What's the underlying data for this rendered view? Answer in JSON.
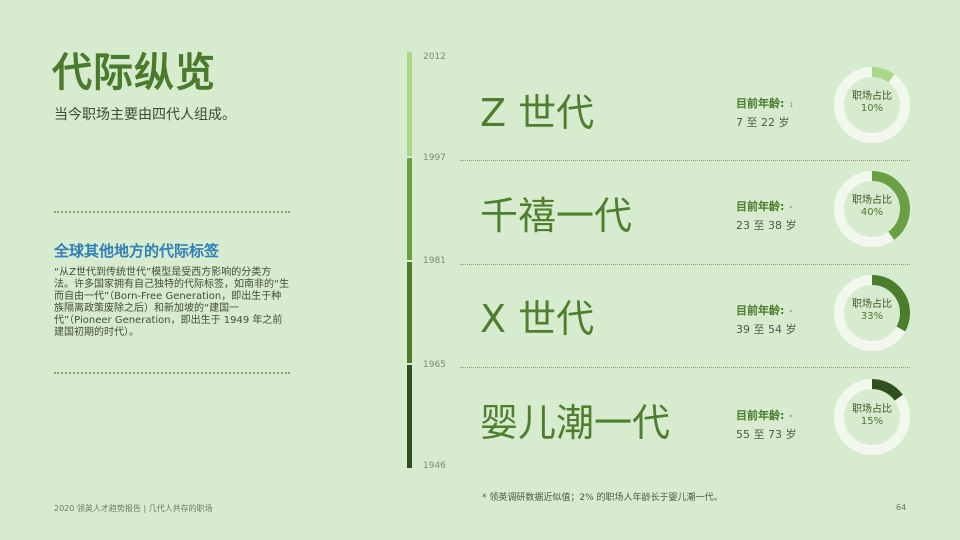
{
  "title": "代际纵览",
  "subtitle": "当今职场主要由四代人组成。",
  "sidebar": {
    "heading": "全球其他地方的代际标签",
    "body": "“从Z世代到传统世代”模型是受西方影响的分类方法。许多国家拥有自己独特的代际标签，如南非的“生而自由一代”（Born-Free Generation，即出生于种族隔离政策废除之后）和新加坡的“建国一代”（Pioneer Generation，即出生于 1949 年之前建国初期的时代）。"
  },
  "years": [
    "2012",
    "1997",
    "1981",
    "1965",
    "1946"
  ],
  "generations": [
    {
      "name": "Z 世代",
      "age_label": "目前年龄:",
      "age_range": "7 至 22 岁",
      "ring_label": "职场占比",
      "pct_text": "10%",
      "share": 0.1,
      "color": "#a9d88a",
      "marker": "1"
    },
    {
      "name": "千禧一代",
      "age_label": "目前年龄:",
      "age_range": "23 至 38 岁",
      "ring_label": "职场占比",
      "pct_text": "40%",
      "share": 0.4,
      "color": "#6aa044",
      "marker": "*"
    },
    {
      "name": "X 世代",
      "age_label": "目前年龄:",
      "age_range": "39 至 54 岁",
      "ring_label": "职场占比",
      "pct_text": "33%",
      "share": 0.33,
      "color": "#4b7d2c",
      "marker": "*"
    },
    {
      "name": "婴儿潮一代",
      "age_label": "目前年龄:",
      "age_range": "55 至 73 岁",
      "ring_label": "职场占比",
      "pct_text": "15%",
      "share": 0.15,
      "color": "#2f4f1e",
      "marker": "*"
    }
  ],
  "footnote": "* 领英调研数据近似值；2% 的职场人年龄长于婴儿潮一代。",
  "footer": {
    "report": "2020 领英人才趋势报告 | 几代人共存的职场",
    "page": "64"
  },
  "colors": {
    "background": "#d7ebcf",
    "ring_track": "#f3f8ee",
    "timeline": [
      "#a9d88a",
      "#6aa044",
      "#4b7d2c",
      "#2f4f1e"
    ]
  }
}
